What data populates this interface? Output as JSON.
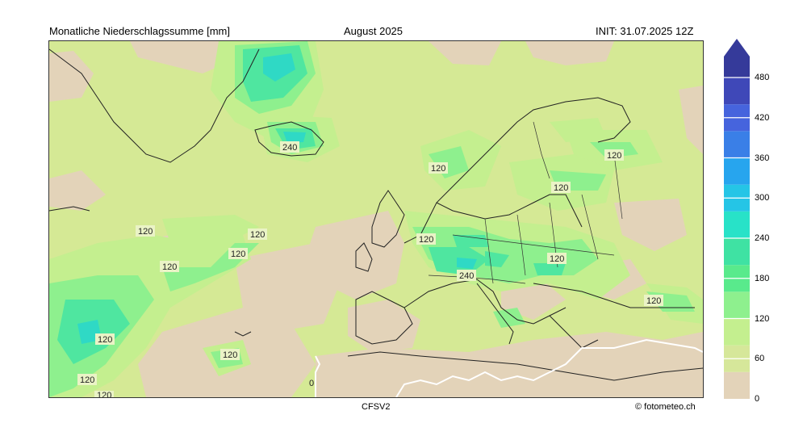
{
  "header": {
    "title": "Monatliche Niederschlagssumme [mm]",
    "period": "August 2025",
    "init": "INIT: 31.07.2025 12Z"
  },
  "footer": {
    "model": "CFSV2",
    "credit": "© fotometeo.ch"
  },
  "colorbar": {
    "ticks": [
      "0",
      "60",
      "120",
      "180",
      "240",
      "300",
      "360",
      "420",
      "480"
    ],
    "colors": [
      "#e3d3b9",
      "#d6e79a",
      "#c4ef8f",
      "#8ef08e",
      "#59ea8c",
      "#3fe2a3",
      "#28e2c8",
      "#25c5e6",
      "#27a5ee",
      "#3a7fe7",
      "#4664dd",
      "#3f48b8",
      "#353a9a"
    ],
    "overflow_color": "#353a9a"
  },
  "map": {
    "contour_labels": [
      {
        "text": "240",
        "name": "contour-label-iceland"
      },
      {
        "text": "120",
        "name": "contour-label-norway"
      },
      {
        "text": "120",
        "name": "contour-label-finland"
      },
      {
        "text": "120",
        "name": "contour-label-baltic"
      },
      {
        "text": "120",
        "name": "contour-label-atlantic-north"
      },
      {
        "text": "120",
        "name": "contour-label-atlantic-mid-1"
      },
      {
        "text": "120",
        "name": "contour-label-atlantic-mid-2"
      },
      {
        "text": "120",
        "name": "contour-label-atlantic-mid-3"
      },
      {
        "text": "120",
        "name": "contour-label-benelux"
      },
      {
        "text": "240",
        "name": "contour-label-alps"
      },
      {
        "text": "120",
        "name": "contour-label-poland"
      },
      {
        "text": "120",
        "name": "contour-label-caucasus"
      },
      {
        "text": "120",
        "name": "contour-label-atlantic-sw"
      },
      {
        "text": "120",
        "name": "contour-label-atlantic-s"
      },
      {
        "text": "120",
        "name": "contour-label-atlantic-sw-2"
      },
      {
        "text": "120",
        "name": "contour-label-atlantic-sw-3"
      },
      {
        "text": "0",
        "name": "contour-label-sahara"
      }
    ]
  }
}
